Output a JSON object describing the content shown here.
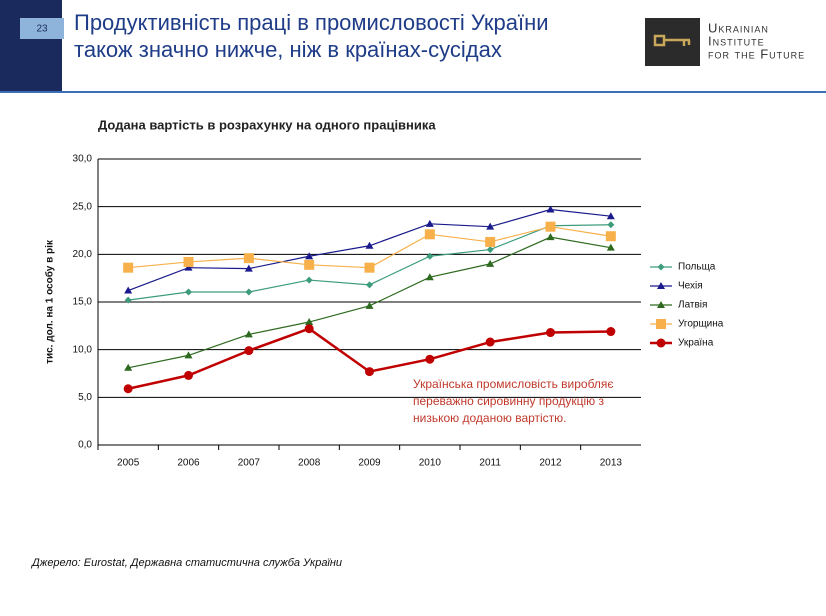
{
  "slide": {
    "page_number": "23",
    "title": [
      "Продуктивність праці в промисловості України",
      "також значно нижче, ніж в країнах-сусідах"
    ],
    "logo": [
      "Ukrainian",
      "Institute",
      "for the Future"
    ],
    "source": "Джерело: Eurostat, Державна статистична служба України"
  },
  "chart_data": {
    "type": "line",
    "title": "Додана вартість в розрахунку на одного працівника",
    "y_label": "тис. дол. на 1 особу в рік",
    "categories": [
      "2005",
      "2006",
      "2007",
      "2008",
      "2009",
      "2010",
      "2011",
      "2012",
      "2013"
    ],
    "series": [
      {
        "name": "Польща",
        "color": "#3d9c7c",
        "marker": "diamond",
        "values": [
          15.2,
          16.05,
          16.05,
          17.3,
          16.8,
          19.8,
          20.5,
          23.0,
          23.1
        ]
      },
      {
        "name": "Чехія",
        "color": "#1a1a8c",
        "marker": "triangle",
        "values": [
          16.2,
          18.6,
          18.5,
          19.8,
          20.9,
          23.2,
          22.9,
          24.7,
          24.0
        ]
      },
      {
        "name": "Латвія",
        "color": "#2d6a1f",
        "marker": "triangle",
        "values": [
          8.1,
          9.4,
          11.6,
          12.9,
          14.6,
          17.6,
          19.0,
          21.8,
          20.7
        ]
      },
      {
        "name": "Угорщина",
        "color": "#f7b04a",
        "marker": "square",
        "values": [
          18.6,
          19.2,
          19.6,
          18.9,
          18.6,
          22.1,
          21.3,
          22.9,
          21.9
        ]
      },
      {
        "name": "Україна",
        "color": "#c00000",
        "marker": "circle",
        "values": [
          5.9,
          7.3,
          9.9,
          12.2,
          7.7,
          9.0,
          10.8,
          11.8,
          11.9
        ]
      }
    ],
    "ylim": [
      0,
      30
    ],
    "yticks": [
      {
        "value": 0,
        "label": "0,0"
      },
      {
        "value": 5,
        "label": "5,0"
      },
      {
        "value": 10,
        "label": "10,0"
      },
      {
        "value": 15,
        "label": "15,0"
      },
      {
        "value": 20,
        "label": "20,0"
      },
      {
        "value": 25,
        "label": "25,0"
      },
      {
        "value": 30,
        "label": "30,0"
      }
    ],
    "grid": true,
    "legend": "right",
    "annotation": [
      "Українська промисловість виробляє",
      "переважно сировинну продукцію з",
      "низькою доданою вартістю."
    ],
    "annotation_color": "#c0392b"
  }
}
